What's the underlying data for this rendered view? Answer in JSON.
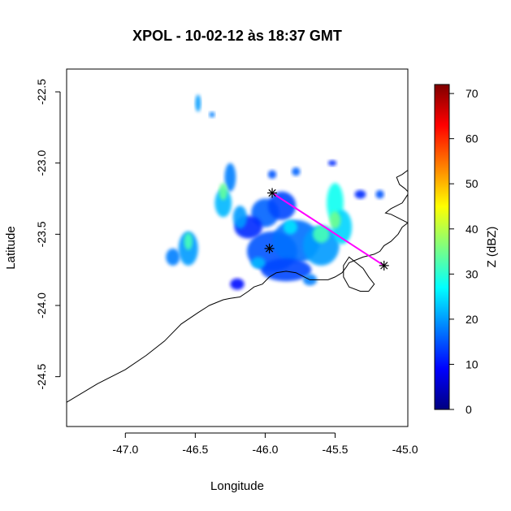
{
  "chart_data": {
    "type": "heatmap",
    "title": "XPOL - 10-02-12 às 18:37 GMT",
    "xlabel": "Longitude",
    "ylabel": "Latitude",
    "xlim": [
      -47.42,
      -44.98
    ],
    "ylim": [
      -24.85,
      -22.34
    ],
    "x_ticks": [
      -47.0,
      -46.5,
      -46.0,
      -45.5,
      -45.0
    ],
    "x_tick_labels": [
      "-47.0",
      "-46.5",
      "-46.0",
      "-45.5",
      "-45.0"
    ],
    "y_ticks": [
      -22.5,
      -23.0,
      -23.5,
      -24.0,
      -24.5
    ],
    "y_tick_labels": [
      "-22.5",
      "-23.0",
      "-23.5",
      "-24.0",
      "-24.5"
    ],
    "colorbar": {
      "label": "Z (dBZ)",
      "range": [
        0,
        72
      ],
      "ticks": [
        0,
        10,
        20,
        30,
        40,
        50,
        60,
        70
      ],
      "tick_labels": [
        "0",
        "10",
        "20",
        "30",
        "40",
        "50",
        "60",
        "70"
      ],
      "colors": [
        "#00007f",
        "#0000ff",
        "#007fff",
        "#00ffff",
        "#7fff7f",
        "#ffff00",
        "#ff7f00",
        "#ff0000",
        "#7f0000"
      ]
    },
    "radar_markers": [
      {
        "lon": -45.97,
        "lat": -23.6
      },
      {
        "lon": -45.95,
        "lat": -23.21
      },
      {
        "lon": -45.15,
        "lat": -23.72
      }
    ],
    "transect": {
      "color": "#ff00ff",
      "start": {
        "lon": -45.95,
        "lat": -23.21
      },
      "end": {
        "lon": -45.15,
        "lat": -23.72
      }
    },
    "echo_regions": [
      {
        "lon": -45.95,
        "lat": -23.62,
        "rx": 0.18,
        "ry": 0.14,
        "dbz": 15
      },
      {
        "lon": -45.78,
        "lat": -23.55,
        "rx": 0.17,
        "ry": 0.15,
        "dbz": 17
      },
      {
        "lon": -45.6,
        "lat": -23.58,
        "rx": 0.13,
        "ry": 0.14,
        "dbz": 20
      },
      {
        "lon": -45.85,
        "lat": -23.75,
        "rx": 0.18,
        "ry": 0.08,
        "dbz": 14
      },
      {
        "lon": -46.0,
        "lat": -23.35,
        "rx": 0.1,
        "ry": 0.1,
        "dbz": 16
      },
      {
        "lon": -45.88,
        "lat": -23.3,
        "rx": 0.1,
        "ry": 0.1,
        "dbz": 14
      },
      {
        "lon": -46.12,
        "lat": -23.45,
        "rx": 0.1,
        "ry": 0.08,
        "dbz": 12
      },
      {
        "lon": -45.5,
        "lat": -23.28,
        "rx": 0.06,
        "ry": 0.14,
        "dbz": 28
      },
      {
        "lon": -45.45,
        "lat": -23.45,
        "rx": 0.07,
        "ry": 0.12,
        "dbz": 24
      },
      {
        "lon": -46.3,
        "lat": -23.28,
        "rx": 0.06,
        "ry": 0.1,
        "dbz": 22
      },
      {
        "lon": -46.25,
        "lat": -23.1,
        "rx": 0.04,
        "ry": 0.1,
        "dbz": 18
      },
      {
        "lon": -46.18,
        "lat": -23.38,
        "rx": 0.05,
        "ry": 0.08,
        "dbz": 20
      },
      {
        "lon": -46.55,
        "lat": -23.6,
        "rx": 0.07,
        "ry": 0.12,
        "dbz": 20
      },
      {
        "lon": -46.66,
        "lat": -23.66,
        "rx": 0.05,
        "ry": 0.06,
        "dbz": 18
      },
      {
        "lon": -46.2,
        "lat": -23.85,
        "rx": 0.05,
        "ry": 0.04,
        "dbz": 10
      },
      {
        "lon": -45.68,
        "lat": -23.82,
        "rx": 0.05,
        "ry": 0.04,
        "dbz": 18
      },
      {
        "lon": -45.95,
        "lat": -23.08,
        "rx": 0.03,
        "ry": 0.03,
        "dbz": 15
      },
      {
        "lon": -45.78,
        "lat": -23.06,
        "rx": 0.03,
        "ry": 0.03,
        "dbz": 16
      },
      {
        "lon": -46.48,
        "lat": -22.58,
        "rx": 0.02,
        "ry": 0.06,
        "dbz": 20
      },
      {
        "lon": -46.38,
        "lat": -22.66,
        "rx": 0.02,
        "ry": 0.02,
        "dbz": 18
      },
      {
        "lon": -45.32,
        "lat": -23.22,
        "rx": 0.04,
        "ry": 0.03,
        "dbz": 12
      },
      {
        "lon": -45.18,
        "lat": -23.22,
        "rx": 0.03,
        "ry": 0.03,
        "dbz": 15
      },
      {
        "lon": -45.52,
        "lat": -23.0,
        "rx": 0.03,
        "ry": 0.02,
        "dbz": 12
      },
      {
        "lon": -45.6,
        "lat": -23.5,
        "rx": 0.06,
        "ry": 0.06,
        "dbz": 32
      },
      {
        "lon": -45.5,
        "lat": -23.4,
        "rx": 0.04,
        "ry": 0.06,
        "dbz": 35
      },
      {
        "lon": -46.3,
        "lat": -23.2,
        "rx": 0.03,
        "ry": 0.06,
        "dbz": 34
      },
      {
        "lon": -46.55,
        "lat": -23.55,
        "rx": 0.03,
        "ry": 0.06,
        "dbz": 32
      },
      {
        "lon": -45.82,
        "lat": -23.45,
        "rx": 0.05,
        "ry": 0.05,
        "dbz": 25
      },
      {
        "lon": -46.05,
        "lat": -23.7,
        "rx": 0.05,
        "ry": 0.04,
        "dbz": 22
      }
    ],
    "coastline": [
      [
        -47.42,
        -24.68
      ],
      [
        -47.2,
        -24.55
      ],
      [
        -47.0,
        -24.45
      ],
      [
        -46.85,
        -24.35
      ],
      [
        -46.72,
        -24.25
      ],
      [
        -46.6,
        -24.13
      ],
      [
        -46.48,
        -24.05
      ],
      [
        -46.4,
        -24.0
      ],
      [
        -46.35,
        -23.98
      ],
      [
        -46.3,
        -23.96
      ],
      [
        -46.25,
        -23.95
      ],
      [
        -46.18,
        -23.94
      ],
      [
        -46.12,
        -23.9
      ],
      [
        -46.08,
        -23.87
      ],
      [
        -46.02,
        -23.85
      ],
      [
        -45.97,
        -23.8
      ],
      [
        -45.92,
        -23.77
      ],
      [
        -45.85,
        -23.76
      ],
      [
        -45.78,
        -23.77
      ],
      [
        -45.72,
        -23.8
      ],
      [
        -45.68,
        -23.82
      ],
      [
        -45.62,
        -23.82
      ],
      [
        -45.55,
        -23.82
      ],
      [
        -45.5,
        -23.8
      ],
      [
        -45.45,
        -23.77
      ],
      [
        -45.42,
        -23.73
      ],
      [
        -45.4,
        -23.7
      ],
      [
        -45.35,
        -23.68
      ],
      [
        -45.3,
        -23.66
      ],
      [
        -45.22,
        -23.64
      ],
      [
        -45.18,
        -23.62
      ],
      [
        -45.15,
        -23.58
      ],
      [
        -45.1,
        -23.55
      ],
      [
        -45.05,
        -23.5
      ],
      [
        -45.02,
        -23.45
      ],
      [
        -44.98,
        -23.42
      ]
    ],
    "coastline_north": [
      [
        -44.98,
        -23.42
      ],
      [
        -45.02,
        -23.4
      ],
      [
        -45.06,
        -23.38
      ],
      [
        -45.1,
        -23.36
      ],
      [
        -45.14,
        -23.35
      ],
      [
        -45.1,
        -23.32
      ],
      [
        -45.06,
        -23.3
      ],
      [
        -45.02,
        -23.28
      ],
      [
        -44.98,
        -23.22
      ]
    ],
    "coastline_ne": [
      [
        -44.98,
        -23.05
      ],
      [
        -45.02,
        -23.08
      ],
      [
        -45.06,
        -23.1
      ],
      [
        -45.04,
        -23.15
      ],
      [
        -45.0,
        -23.18
      ],
      [
        -44.98,
        -23.2
      ]
    ],
    "island": [
      [
        -45.44,
        -23.72
      ],
      [
        -45.4,
        -23.66
      ],
      [
        -45.35,
        -23.7
      ],
      [
        -45.3,
        -23.74
      ],
      [
        -45.26,
        -23.8
      ],
      [
        -45.22,
        -23.85
      ],
      [
        -45.26,
        -23.9
      ],
      [
        -45.32,
        -23.9
      ],
      [
        -45.4,
        -23.87
      ],
      [
        -45.44,
        -23.8
      ],
      [
        -45.44,
        -23.72
      ]
    ]
  }
}
